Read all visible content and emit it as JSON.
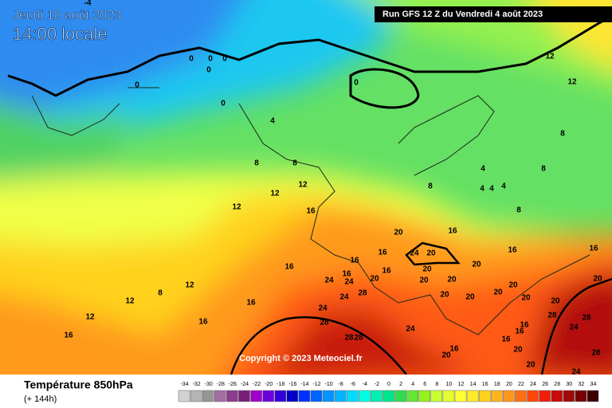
{
  "header": {
    "date": "Jeudi 10 août 2023",
    "time": "14:00 locale",
    "run": "Run GFS 12 Z du Vendredi 4 août 2023"
  },
  "copyright": "Copyright © 2023 Meteociel.fr",
  "legend": {
    "title": "Température 850hPa",
    "subtitle": "(+ 144h)",
    "ticks": [
      -34,
      -32,
      -30,
      -28,
      -26,
      -24,
      -22,
      -20,
      -18,
      -16,
      -14,
      -12,
      -10,
      -8,
      -6,
      -4,
      -2,
      0,
      2,
      4,
      6,
      8,
      10,
      12,
      14,
      16,
      18,
      20,
      22,
      24,
      26,
      28,
      30,
      32,
      34
    ],
    "colors": [
      "#d2d2d2",
      "#b4b4b4",
      "#969696",
      "#a06ea0",
      "#8c3c8c",
      "#781e78",
      "#a000c8",
      "#6e00dc",
      "#3200dc",
      "#0000c8",
      "#0032ff",
      "#0064ff",
      "#0096ff",
      "#00b4ff",
      "#00dcff",
      "#00ffe6",
      "#00f0b4",
      "#00e68c",
      "#32dc50",
      "#64e632",
      "#96f01e",
      "#c8ff32",
      "#e6ff32",
      "#ffff32",
      "#ffeb28",
      "#ffd21e",
      "#ffb41e",
      "#ff961e",
      "#ff6e14",
      "#ff460a",
      "#f01e0a",
      "#c80a0a",
      "#a00a0a",
      "#780000",
      "#3c0000"
    ]
  },
  "contour_labels": [
    -4,
    0,
    0,
    0,
    0,
    0,
    0,
    0,
    4,
    8,
    8,
    12,
    12,
    12,
    16,
    20,
    16,
    16,
    16,
    12,
    12,
    8,
    12,
    16,
    16,
    16,
    24,
    16,
    24,
    20,
    16,
    24,
    28,
    24,
    28,
    28,
    28,
    24,
    24,
    20,
    20,
    20,
    20,
    20,
    20,
    20,
    20,
    20,
    16,
    16,
    16,
    20,
    20,
    20,
    28,
    28,
    24,
    28,
    24,
    16,
    16,
    16,
    20,
    20,
    16,
    20,
    8,
    4,
    4,
    4,
    4,
    8,
    8,
    8,
    12,
    12
  ]
}
